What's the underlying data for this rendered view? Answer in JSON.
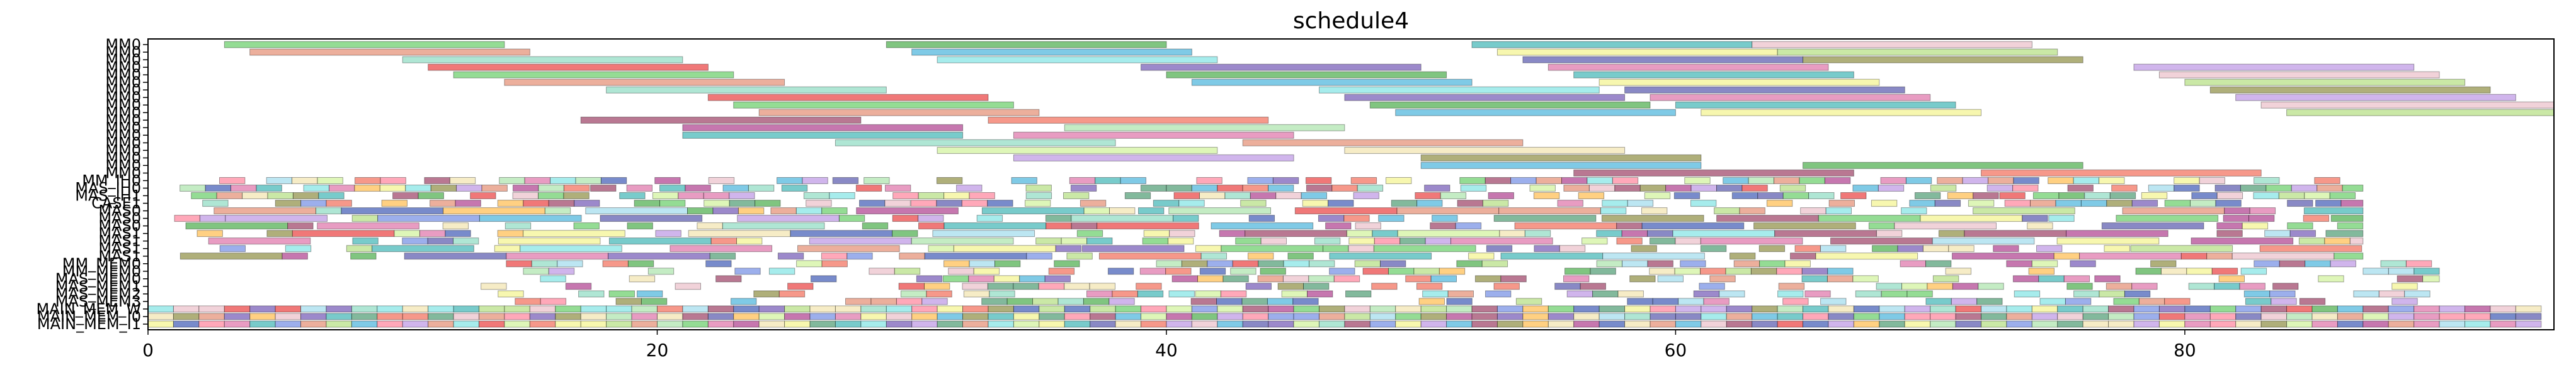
{
  "chart_data": {
    "type": "gantt",
    "title": "schedule4",
    "xlabel": "",
    "ylabel": "",
    "xlim": [
      0,
      94.5
    ],
    "xticks": [
      0,
      20,
      40,
      60,
      80
    ],
    "grid": false,
    "legend": "none",
    "rows": [
      "MM0",
      "MM0",
      "MM0",
      "MM0",
      "MM0",
      "MM0",
      "MM0",
      "MM0",
      "MM0",
      "MM0",
      "MM0",
      "MM0",
      "MM0",
      "MM0",
      "MM0",
      "MM0",
      "MM0",
      "MM0",
      "MM_IH0",
      "MAS_IH0",
      "MAS_IH1",
      "CASE1",
      "MAS0",
      "MAS0",
      "MAS0",
      "MAS1",
      "MAS1",
      "MAS1",
      "MAS1",
      "MM_MEM0",
      "MM_MEM0",
      "MAS_MEM0",
      "MAS_MEM1",
      "MAS_MEM2",
      "MAS_MEM3",
      "MAIN_MEM_W",
      "MAIN_MEM_I0",
      "MAIN_MEM_I1"
    ],
    "palette": [
      "#4cc44c",
      "#7a7a22",
      "#8b1e4a",
      "#f2f27a",
      "#8fd6ea",
      "#2b9e2b",
      "#a01c7a",
      "#e61e1e",
      "#a6d86a",
      "#f0543c",
      "#1ea8a8",
      "#ffb02e",
      "#5a3aa8",
      "#9ce09c",
      "#7ad6b8",
      "#e8b4c0",
      "#1e3ea8",
      "#d85a9a",
      "#c8f088",
      "#6ae0e0",
      "#2e8a5a",
      "#e07a5a",
      "#b084e0",
      "#5a7ae0",
      "#3a3a9e",
      "#f0e0a0",
      "#2aa6d6",
      "#ff6e8a"
    ],
    "mm_bars": [
      {
        "row": 0,
        "start": 3,
        "end": 14
      },
      {
        "row": 0,
        "start": 29,
        "end": 40
      },
      {
        "row": 0,
        "start": 52,
        "end": 63
      },
      {
        "row": 0,
        "start": 63,
        "end": 74
      },
      {
        "row": 1,
        "start": 4,
        "end": 15
      },
      {
        "row": 1,
        "start": 30,
        "end": 41
      },
      {
        "row": 1,
        "start": 53,
        "end": 64
      },
      {
        "row": 1,
        "start": 64,
        "end": 75
      },
      {
        "row": 2,
        "start": 10,
        "end": 21
      },
      {
        "row": 2,
        "start": 31,
        "end": 42
      },
      {
        "row": 2,
        "start": 54,
        "end": 65
      },
      {
        "row": 2,
        "start": 65,
        "end": 76
      },
      {
        "row": 3,
        "start": 11,
        "end": 22
      },
      {
        "row": 3,
        "start": 39,
        "end": 50
      },
      {
        "row": 3,
        "start": 55,
        "end": 66
      },
      {
        "row": 3,
        "start": 78,
        "end": 89
      },
      {
        "row": 4,
        "start": 12,
        "end": 23
      },
      {
        "row": 4,
        "start": 40,
        "end": 51
      },
      {
        "row": 4,
        "start": 56,
        "end": 67
      },
      {
        "row": 4,
        "start": 79,
        "end": 90
      },
      {
        "row": 5,
        "start": 14,
        "end": 25
      },
      {
        "row": 5,
        "start": 41,
        "end": 52
      },
      {
        "row": 5,
        "start": 57,
        "end": 68
      },
      {
        "row": 5,
        "start": 80,
        "end": 91
      },
      {
        "row": 6,
        "start": 18,
        "end": 29
      },
      {
        "row": 6,
        "start": 46,
        "end": 57
      },
      {
        "row": 6,
        "start": 58,
        "end": 69
      },
      {
        "row": 6,
        "start": 81,
        "end": 92
      },
      {
        "row": 7,
        "start": 22,
        "end": 33
      },
      {
        "row": 7,
        "start": 47,
        "end": 58
      },
      {
        "row": 7,
        "start": 59,
        "end": 70
      },
      {
        "row": 7,
        "start": 82,
        "end": 93
      },
      {
        "row": 8,
        "start": 23,
        "end": 34
      },
      {
        "row": 8,
        "start": 48,
        "end": 59
      },
      {
        "row": 8,
        "start": 60,
        "end": 71
      },
      {
        "row": 8,
        "start": 83,
        "end": 94.5
      },
      {
        "row": 9,
        "start": 24,
        "end": 35
      },
      {
        "row": 9,
        "start": 49,
        "end": 60
      },
      {
        "row": 9,
        "start": 61,
        "end": 72
      },
      {
        "row": 9,
        "start": 84,
        "end": 94.5
      }
    ]
  }
}
